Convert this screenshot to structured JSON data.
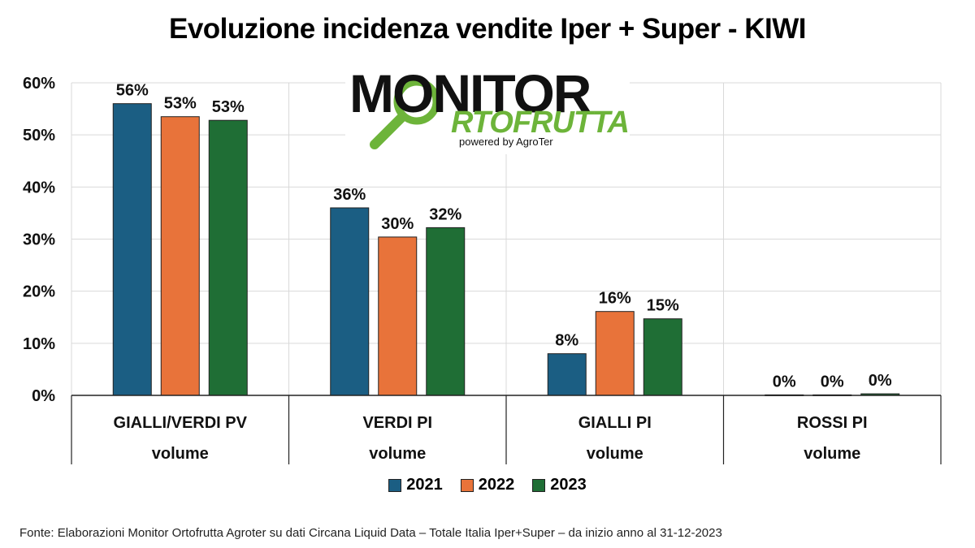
{
  "chart_data": {
    "type": "bar",
    "title": "Evoluzione incidenza vendite Iper + Super - KIWI",
    "categories": [
      "GIALLI/VERDI PV",
      "VERDI PI",
      "GIALLI PI",
      "ROSSI PI"
    ],
    "category_sublabels": [
      "volume",
      "volume",
      "volume",
      "volume"
    ],
    "series": [
      {
        "name": "2021",
        "color": "#1b5e83",
        "values": [
          56,
          36,
          8,
          0.1
        ],
        "labels": [
          "56%",
          "36%",
          "8%",
          "0%"
        ]
      },
      {
        "name": "2022",
        "color": "#e8733a",
        "values": [
          53.5,
          30.4,
          16.1,
          0.1
        ],
        "labels": [
          "53%",
          "30%",
          "16%",
          "0%"
        ]
      },
      {
        "name": "2023",
        "color": "#1f6e35",
        "values": [
          52.8,
          32.2,
          14.7,
          0.3
        ],
        "labels": [
          "53%",
          "32%",
          "15%",
          "0%"
        ]
      }
    ],
    "yticks": [
      "0%",
      "10%",
      "20%",
      "30%",
      "40%",
      "50%",
      "60%"
    ],
    "ylim": [
      0,
      60
    ],
    "grid": true,
    "legend": "bottom"
  },
  "logo": {
    "line1": "MONITOR",
    "line2": "RTOFRUTTA",
    "powered": "powered by AgroTer"
  },
  "source_note": "Fonte: Elaborazioni Monitor Ortofrutta Agroter su dati Circana Liquid Data – Totale Italia Iper+Super –  da inizio anno al 31-12-2023"
}
